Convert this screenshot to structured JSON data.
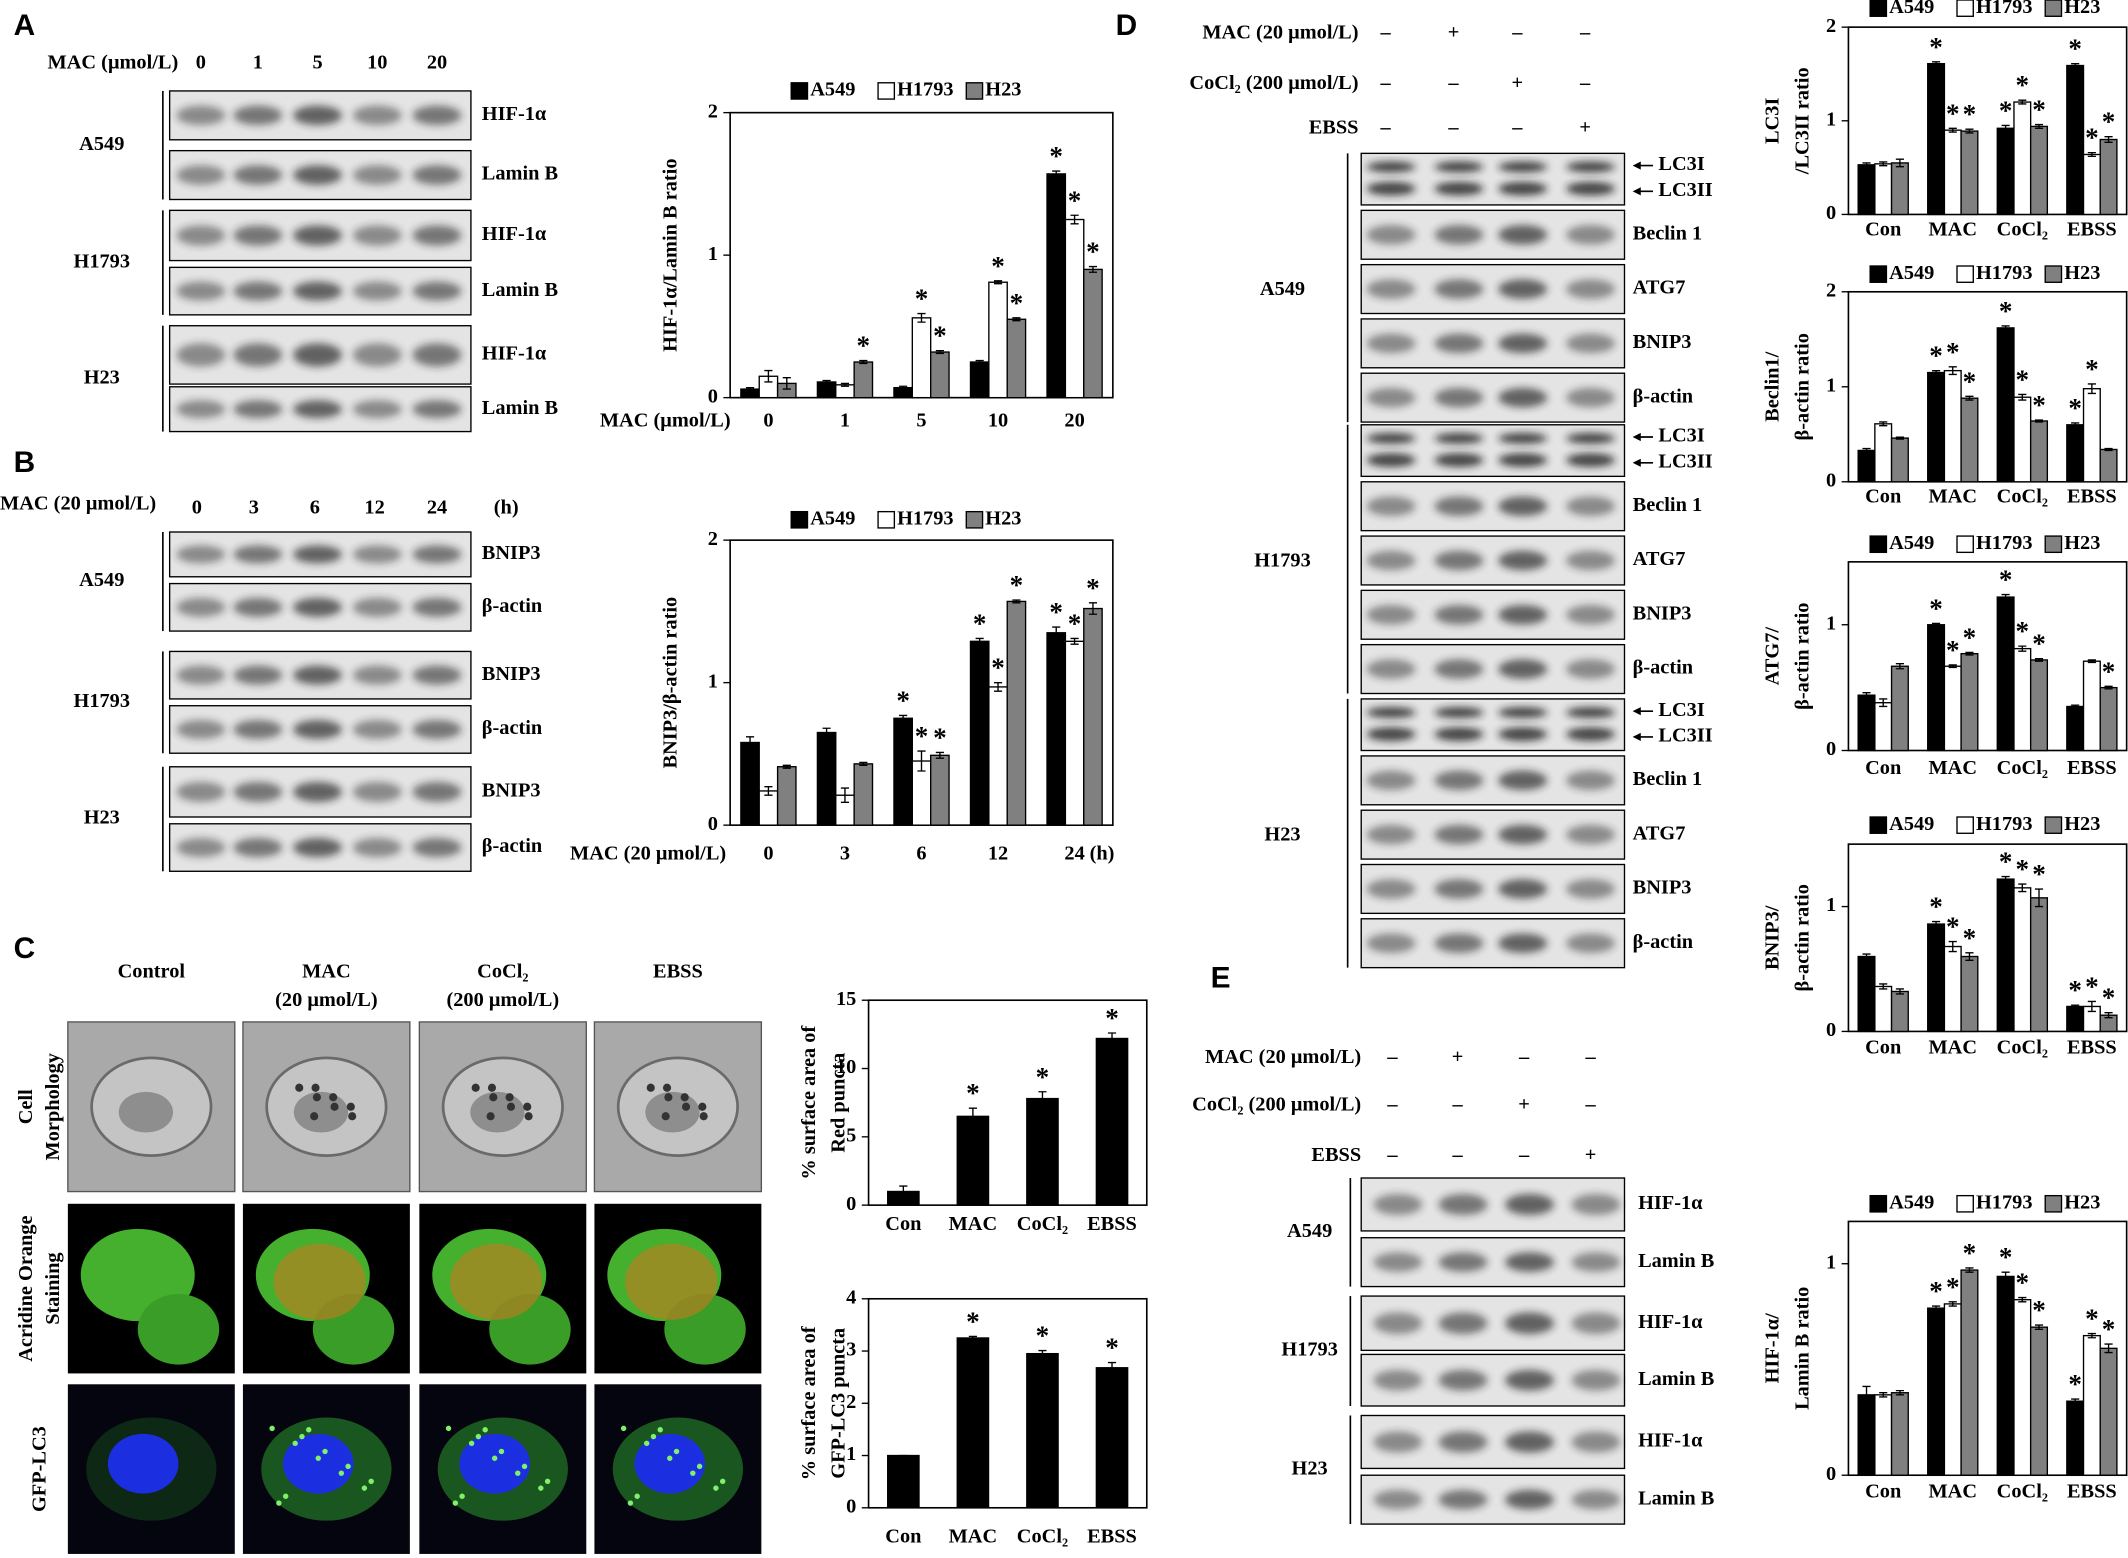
{
  "panels": {
    "a": {
      "label": "A",
      "condition": "MAC (μmol/L)",
      "doses": [
        "0",
        "1",
        "5",
        "10",
        "20"
      ],
      "groups": [
        {
          "cell": "A549",
          "rows": [
            "HIF-1α",
            "Lamin B"
          ]
        },
        {
          "cell": "H1793",
          "rows": [
            "HIF-1α",
            "Lamin B"
          ]
        },
        {
          "cell": "H23",
          "rows": [
            "HIF-1α",
            "Lamin B"
          ]
        }
      ]
    },
    "b": {
      "label": "B",
      "condition": "MAC (20 μmol/L)",
      "times": [
        "0",
        "3",
        "6",
        "12",
        "24"
      ],
      "unit": "(h)",
      "groups": [
        {
          "cell": "A549",
          "rows": [
            "BNIP3",
            "β-actin"
          ]
        },
        {
          "cell": "H1793",
          "rows": [
            "BNIP3",
            "β-actin"
          ]
        },
        {
          "cell": "H23",
          "rows": [
            "BNIP3",
            "β-actin"
          ]
        }
      ]
    },
    "c": {
      "label": "C",
      "columns": [
        [
          "Control"
        ],
        [
          "MAC",
          "(20 μmol/L)"
        ],
        [
          "CoCl₂",
          "(200 μmol/L)"
        ],
        [
          "EBSS"
        ]
      ],
      "rows": [
        [
          "Cell",
          "Morphology"
        ],
        [
          "Acridine Orange",
          "Staining"
        ],
        [
          "GFP-LC3"
        ]
      ]
    },
    "d": {
      "label": "D",
      "conditions": [
        {
          "name": "MAC (20 μmol/L)",
          "signs": [
            "–",
            "+",
            "–",
            "–"
          ]
        },
        {
          "name": "CoCl₂ (200 μmol/L)",
          "signs": [
            "–",
            "–",
            "+",
            "–"
          ]
        },
        {
          "name": "EBSS",
          "signs": [
            "–",
            "–",
            "–",
            "+"
          ]
        }
      ],
      "groups": [
        {
          "cell": "A549",
          "doublet": [
            "LC3I",
            "LC3II"
          ],
          "rows": [
            "Beclin 1",
            "ATG7",
            "BNIP3",
            "β-actin"
          ]
        },
        {
          "cell": "H1793",
          "doublet": [
            "LC3I",
            "LC3II"
          ],
          "rows": [
            "Beclin 1",
            "ATG7",
            "BNIP3",
            "β-actin"
          ]
        },
        {
          "cell": "H23",
          "doublet": [
            "LC3I",
            "LC3II"
          ],
          "rows": [
            "Beclin 1",
            "ATG7",
            "BNIP3",
            "β-actin"
          ]
        }
      ]
    },
    "e": {
      "label": "E",
      "conditions": [
        {
          "name": "MAC (20 μmol/L)",
          "signs": [
            "–",
            "+",
            "–",
            "–"
          ]
        },
        {
          "name": "CoCl₂ (200 μmol/L)",
          "signs": [
            "–",
            "–",
            "+",
            "–"
          ]
        },
        {
          "name": "EBSS",
          "signs": [
            "–",
            "–",
            "–",
            "+"
          ]
        }
      ],
      "groups": [
        {
          "cell": "A549",
          "rows": [
            "HIF-1α",
            "Lamin B"
          ]
        },
        {
          "cell": "H1793",
          "rows": [
            "HIF-1α",
            "Lamin B"
          ]
        },
        {
          "cell": "H23",
          "rows": [
            "HIF-1α",
            "Lamin B"
          ]
        }
      ]
    }
  },
  "chart_data": [
    {
      "type": "bar",
      "ylabel": [
        "HIF-1α/Lamin B ratio"
      ],
      "xlabel": "MAC (μmol/L)",
      "categories": [
        "0",
        "1",
        "5",
        "10",
        "20"
      ],
      "ylim": [
        0,
        2
      ],
      "yticks": [
        0,
        1,
        2
      ],
      "series": [
        {
          "name": "A549",
          "color": "#000000",
          "values": [
            0.06,
            0.11,
            0.07,
            0.25,
            1.57
          ],
          "errors": [
            0.01,
            0.01,
            0.01,
            0.01,
            0.02
          ],
          "annotations": [
            null,
            null,
            null,
            null,
            "*"
          ]
        },
        {
          "name": "H1793",
          "color": "#ffffff",
          "values": [
            0.15,
            0.09,
            0.56,
            0.81,
            1.25
          ],
          "errors": [
            0.04,
            0.01,
            0.03,
            0.01,
            0.03
          ],
          "annotations": [
            null,
            null,
            "*",
            "*",
            "*"
          ]
        },
        {
          "name": "H23",
          "color": "#808080",
          "values": [
            0.1,
            0.25,
            0.32,
            0.55,
            0.9
          ],
          "errors": [
            0.04,
            0.01,
            0.01,
            0.01,
            0.02
          ],
          "annotations": [
            null,
            "*",
            "*",
            "*",
            "*"
          ]
        }
      ]
    },
    {
      "type": "bar",
      "ylabel": [
        "BNIP3/β-actin ratio"
      ],
      "xlabel": "MAC (20 μmol/L)",
      "xunit": "(h)",
      "categories": [
        "0",
        "3",
        "6",
        "12",
        "24"
      ],
      "ylim": [
        0,
        2
      ],
      "yticks": [
        0,
        1,
        2
      ],
      "series": [
        {
          "name": "A549",
          "color": "#000000",
          "values": [
            0.58,
            0.65,
            0.75,
            1.29,
            1.35
          ],
          "errors": [
            0.04,
            0.03,
            0.02,
            0.02,
            0.04
          ],
          "annotations": [
            null,
            null,
            "*",
            "*",
            "*"
          ]
        },
        {
          "name": "H1793",
          "color": "#ffffff",
          "values": [
            0.24,
            0.21,
            0.45,
            0.97,
            1.29
          ],
          "errors": [
            0.03,
            0.05,
            0.07,
            0.03,
            0.02
          ],
          "annotations": [
            null,
            null,
            "*",
            "*",
            "*"
          ]
        },
        {
          "name": "H23",
          "color": "#808080",
          "values": [
            0.41,
            0.43,
            0.49,
            1.57,
            1.52
          ],
          "errors": [
            0.01,
            0.01,
            0.02,
            0.01,
            0.04
          ],
          "annotations": [
            null,
            null,
            "*",
            "*",
            "*"
          ]
        }
      ]
    },
    {
      "type": "bar",
      "ylabel": [
        "% surface area of",
        "Red puncta"
      ],
      "categories": [
        "Con",
        "MAC",
        "CoCl₂",
        "EBSS"
      ],
      "ylim": [
        0,
        15
      ],
      "yticks": [
        0,
        5,
        10,
        15
      ],
      "color": "#000000",
      "values": [
        1,
        6.5,
        7.8,
        12.2
      ],
      "errors": [
        0.4,
        0.6,
        0.5,
        0.4
      ],
      "annotations": [
        null,
        "*",
        "*",
        "*"
      ]
    },
    {
      "type": "bar",
      "ylabel": [
        "% surface area of",
        "GFP-LC3 puncta"
      ],
      "categories": [
        "Con",
        "MAC",
        "CoCl₂",
        "EBSS"
      ],
      "ylim": [
        0,
        4
      ],
      "yticks": [
        0,
        1,
        2,
        3,
        4
      ],
      "color": "#000000",
      "values": [
        1,
        3.25,
        2.95,
        2.68
      ],
      "errors": [
        0,
        0.03,
        0.06,
        0.1
      ],
      "annotations": [
        null,
        "*",
        "*",
        "*"
      ]
    },
    {
      "type": "bar",
      "ylabel": [
        "LC3I",
        "/LC3II ratio"
      ],
      "categories": [
        "Con",
        "MAC",
        "CoCl₂",
        "EBSS"
      ],
      "ylim": [
        0,
        2
      ],
      "yticks": [
        0,
        1,
        2
      ],
      "series": [
        {
          "name": "A549",
          "color": "#000000",
          "values": [
            0.53,
            1.61,
            0.92,
            1.59
          ],
          "errors": [
            0.02,
            0.02,
            0.03,
            0.02
          ],
          "annotations": [
            null,
            "*",
            "*",
            "*"
          ]
        },
        {
          "name": "H1793",
          "color": "#ffffff",
          "values": [
            0.54,
            0.9,
            1.2,
            0.64
          ],
          "errors": [
            0.02,
            0.02,
            0.02,
            0.02
          ],
          "annotations": [
            null,
            "*",
            "*",
            "*"
          ]
        },
        {
          "name": "H23",
          "color": "#808080",
          "values": [
            0.55,
            0.89,
            0.94,
            0.8
          ],
          "errors": [
            0.04,
            0.02,
            0.02,
            0.03
          ],
          "annotations": [
            null,
            "*",
            "*",
            "*"
          ]
        }
      ]
    },
    {
      "type": "bar",
      "ylabel": [
        "Beclin1/",
        "β-actin ratio"
      ],
      "categories": [
        "Con",
        "MAC",
        "CoCl₂",
        "EBSS"
      ],
      "ylim": [
        0,
        2
      ],
      "yticks": [
        0,
        1,
        2
      ],
      "series": [
        {
          "name": "A549",
          "color": "#000000",
          "values": [
            0.33,
            1.15,
            1.62,
            0.6
          ],
          "errors": [
            0.02,
            0.02,
            0.02,
            0.02
          ],
          "annotations": [
            null,
            "*",
            "*",
            "*"
          ]
        },
        {
          "name": "H1793",
          "color": "#ffffff",
          "values": [
            0.61,
            1.17,
            0.89,
            0.98
          ],
          "errors": [
            0.02,
            0.04,
            0.03,
            0.05
          ],
          "annotations": [
            null,
            "*",
            "*",
            "*"
          ]
        },
        {
          "name": "H23",
          "color": "#808080",
          "values": [
            0.46,
            0.88,
            0.64,
            0.34
          ],
          "errors": [
            0.01,
            0.02,
            0.01,
            0.01
          ],
          "annotations": [
            null,
            "*",
            "*",
            null
          ]
        }
      ]
    },
    {
      "type": "bar",
      "ylabel": [
        "ATG7/",
        "β-actin ratio"
      ],
      "categories": [
        "Con",
        "MAC",
        "CoCl₂",
        "EBSS"
      ],
      "ylim": [
        0,
        1.5
      ],
      "yticks": [
        0,
        1
      ],
      "series": [
        {
          "name": "A549",
          "color": "#000000",
          "values": [
            0.44,
            1.0,
            1.22,
            0.35
          ],
          "errors": [
            0.02,
            0.01,
            0.02,
            0.01
          ],
          "annotations": [
            null,
            "*",
            "*",
            null
          ]
        },
        {
          "name": "H1793",
          "color": "#ffffff",
          "values": [
            0.38,
            0.67,
            0.81,
            0.71
          ],
          "errors": [
            0.03,
            0.01,
            0.02,
            0.01
          ],
          "annotations": [
            null,
            "*",
            "*",
            null
          ]
        },
        {
          "name": "H23",
          "color": "#808080",
          "values": [
            0.67,
            0.77,
            0.72,
            0.5
          ],
          "errors": [
            0.02,
            0.01,
            0.01,
            0.01
          ],
          "annotations": [
            null,
            "*",
            "*",
            "*"
          ]
        }
      ]
    },
    {
      "type": "bar",
      "ylabel": [
        "BNIP3/",
        "β-actin ratio"
      ],
      "categories": [
        "Con",
        "MAC",
        "CoCl₂",
        "EBSS"
      ],
      "ylim": [
        0,
        1.5
      ],
      "yticks": [
        0,
        1
      ],
      "series": [
        {
          "name": "A549",
          "color": "#000000",
          "values": [
            0.6,
            0.86,
            1.22,
            0.2
          ],
          "errors": [
            0.02,
            0.02,
            0.02,
            0.01
          ],
          "annotations": [
            null,
            "*",
            "*",
            "*"
          ]
        },
        {
          "name": "H1793",
          "color": "#ffffff",
          "values": [
            0.36,
            0.68,
            1.15,
            0.2
          ],
          "errors": [
            0.02,
            0.04,
            0.03,
            0.04
          ],
          "annotations": [
            null,
            "*",
            "*",
            "*"
          ]
        },
        {
          "name": "H23",
          "color": "#808080",
          "values": [
            0.32,
            0.6,
            1.07,
            0.13
          ],
          "errors": [
            0.02,
            0.03,
            0.07,
            0.02
          ],
          "annotations": [
            null,
            "*",
            "*",
            "*"
          ]
        }
      ]
    },
    {
      "type": "bar",
      "ylabel": [
        "HIF-1α/",
        "Lamin B ratio"
      ],
      "categories": [
        "Con",
        "MAC",
        "CoCl₂",
        "EBSS"
      ],
      "ylim": [
        0,
        1.2
      ],
      "yticks": [
        0,
        1
      ],
      "series": [
        {
          "name": "A549",
          "color": "#000000",
          "values": [
            0.38,
            0.79,
            0.94,
            0.35
          ],
          "errors": [
            0.04,
            0.01,
            0.02,
            0.01
          ],
          "annotations": [
            null,
            "*",
            "*",
            "*"
          ]
        },
        {
          "name": "H1793",
          "color": "#ffffff",
          "values": [
            0.38,
            0.81,
            0.83,
            0.66
          ],
          "errors": [
            0.01,
            0.01,
            0.01,
            0.01
          ],
          "annotations": [
            null,
            "*",
            "*",
            "*"
          ]
        },
        {
          "name": "H23",
          "color": "#808080",
          "values": [
            0.39,
            0.97,
            0.7,
            0.6
          ],
          "errors": [
            0.01,
            0.01,
            0.01,
            0.02
          ],
          "annotations": [
            null,
            "*",
            "*",
            "*"
          ]
        }
      ]
    }
  ]
}
